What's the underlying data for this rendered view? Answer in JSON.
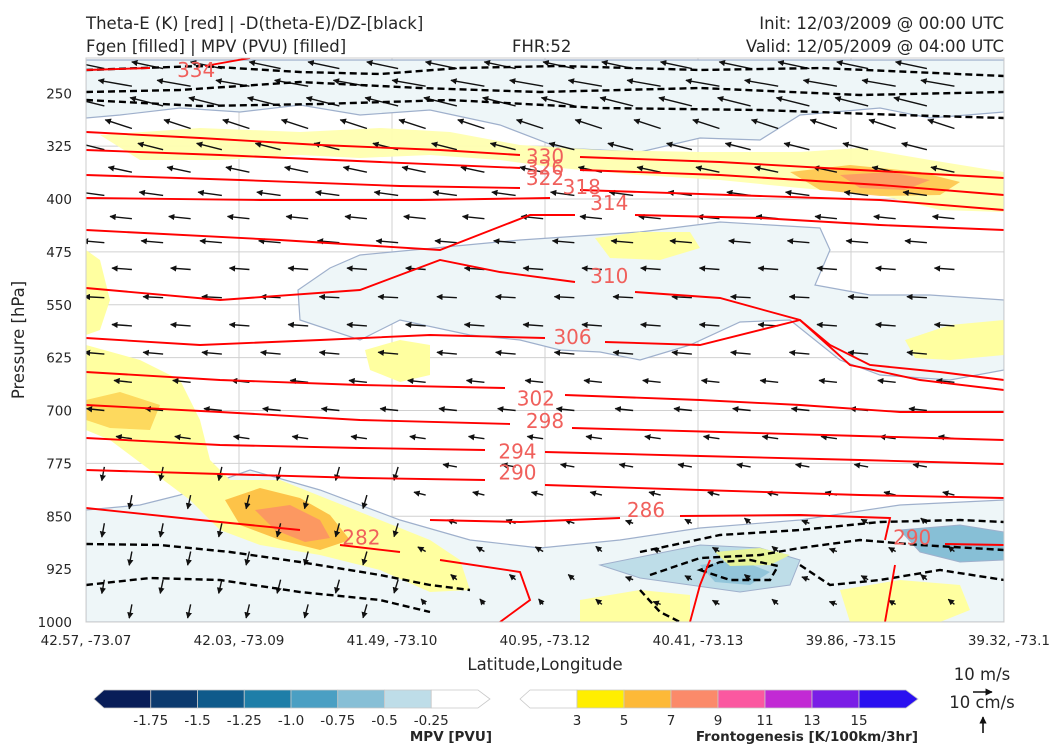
{
  "header": {
    "title_line1": "Theta-E (K) [red] | -D(theta-E)/DZ-[black]",
    "title_line2": "Fgen [filled] | MPV (PVU) [filled]",
    "fhr": "FHR:52",
    "init": "Init: 12/03/2009 @ 00:00 UTC",
    "valid": "Valid: 12/05/2009 @ 04:00 UTC"
  },
  "chart_data": {
    "type": "cross-section",
    "xlabel": "Latitude,Longitude",
    "ylabel": "Pressure [hPa]",
    "x_tick_labels": [
      "42.57, -73.07",
      "42.03, -73.09",
      "41.49, -73.10",
      "40.95, -73.12",
      "40.41, -73.13",
      "39.86, -73.15",
      "39.32, -73.1"
    ],
    "y_ticks": [
      250,
      325,
      400,
      475,
      550,
      625,
      700,
      775,
      850,
      925,
      1000
    ],
    "ylim": [
      1000,
      200
    ],
    "y_inverted": true,
    "grid": true,
    "theta_e_contours": {
      "color": "#ff0000",
      "label_color": "#f0605c",
      "labels": [
        {
          "value": "334",
          "x": 0.12,
          "p": 217
        },
        {
          "value": "330",
          "x": 0.5,
          "p": 340
        },
        {
          "value": "326",
          "x": 0.5,
          "p": 355
        },
        {
          "value": "322",
          "x": 0.5,
          "p": 370
        },
        {
          "value": "318",
          "x": 0.54,
          "p": 383
        },
        {
          "value": "314",
          "x": 0.57,
          "p": 406
        },
        {
          "value": "310",
          "x": 0.57,
          "p": 509
        },
        {
          "value": "306",
          "x": 0.53,
          "p": 596
        },
        {
          "value": "302",
          "x": 0.49,
          "p": 683
        },
        {
          "value": "298",
          "x": 0.5,
          "p": 715
        },
        {
          "value": "294",
          "x": 0.47,
          "p": 758
        },
        {
          "value": "290",
          "x": 0.47,
          "p": 788
        },
        {
          "value": "286",
          "x": 0.61,
          "p": 841
        },
        {
          "value": "282",
          "x": 0.3,
          "p": 880
        },
        {
          "value": "290",
          "x": 0.9,
          "p": 880
        }
      ]
    },
    "mpv_colorbar": {
      "title": "MPV [PVU]",
      "tick_labels": [
        "-1.75",
        "-1.5",
        "-1.25",
        "-1.0",
        "-0.75",
        "-0.5",
        "-0.25"
      ],
      "colors": [
        "#081d58",
        "#0c3a6e",
        "#0f5a8b",
        "#1e7ea8",
        "#4a9fc3",
        "#87bfd6",
        "#bedde8",
        "#ffffff"
      ]
    },
    "fgen_colorbar": {
      "title": "Frontogenesis [K/100km/3hr]",
      "tick_labels": [
        "3",
        "5",
        "7",
        "9",
        "11",
        "13",
        "15"
      ],
      "colors": [
        "#ffffff",
        "#ffee00",
        "#fdb938",
        "#fb8a6a",
        "#fb58a0",
        "#c22ad4",
        "#7a1ee6",
        "#2a10f0"
      ]
    },
    "quiver_key": {
      "label1": "10 m/s",
      "label2": "10 cm/s"
    }
  }
}
